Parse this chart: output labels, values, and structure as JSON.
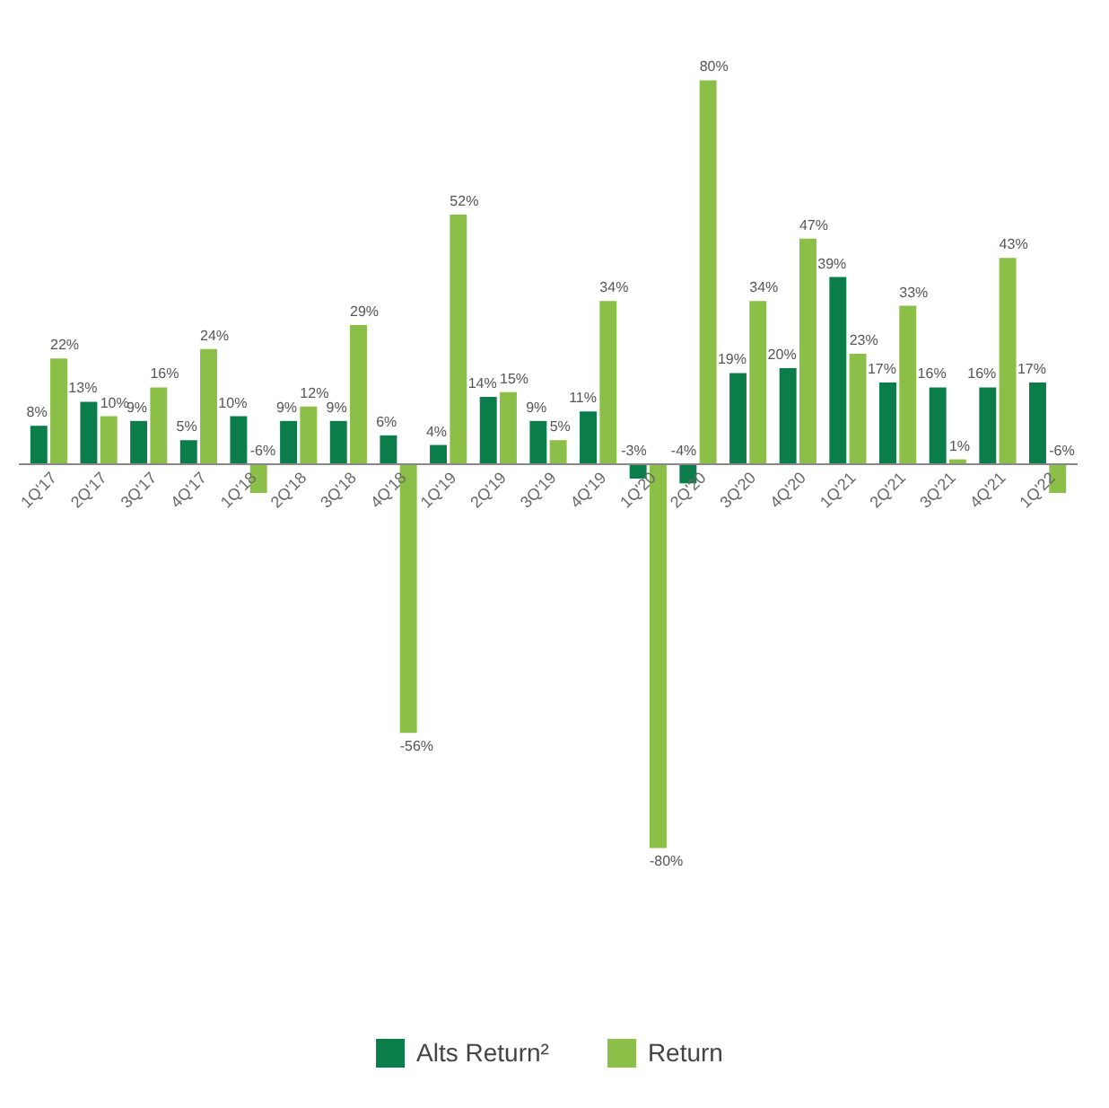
{
  "chart_data": {
    "type": "bar",
    "categories": [
      "1Q'17",
      "2Q'17",
      "3Q'17",
      "4Q'17",
      "1Q'18",
      "2Q'18",
      "3Q'18",
      "4Q'18",
      "1Q'19",
      "2Q'19",
      "3Q'19",
      "4Q'19",
      "1Q'20",
      "2Q'20",
      "3Q'20",
      "4Q'20",
      "1Q'21",
      "2Q'21",
      "3Q'21",
      "4Q'21",
      "1Q'22"
    ],
    "series": [
      {
        "name": "Alts Return²",
        "color": "#0a7d4b",
        "values": [
          8,
          13,
          9,
          5,
          10,
          9,
          9,
          6,
          4,
          14,
          9,
          11,
          -3,
          -4,
          19,
          20,
          39,
          17,
          16,
          16,
          17
        ],
        "value_labels": [
          "8%",
          "13%",
          "9%",
          "5%",
          "10%",
          "9%",
          "9%",
          "6%",
          "4%",
          "14%",
          "9%",
          "11%",
          "-3%",
          "-4%",
          "19%",
          "20%",
          "39%",
          "17%",
          "16%",
          "16%",
          "17%"
        ]
      },
      {
        "name": "Return",
        "color": "#8bbf48",
        "values": [
          22,
          10,
          16,
          24,
          -6,
          12,
          29,
          -56,
          52,
          15,
          5,
          34,
          -80,
          80,
          34,
          47,
          23,
          33,
          1,
          43,
          -6
        ],
        "value_labels": [
          "22%",
          "10%",
          "16%",
          "24%",
          "-6%",
          "12%",
          "29%",
          "-56%",
          "52%",
          "15%",
          "5%",
          "34%",
          "-80%",
          "80%",
          "34%",
          "47%",
          "23%",
          "33%",
          "1%",
          "43%",
          "-6%"
        ]
      }
    ],
    "legend": "bottom",
    "grid": false
  }
}
